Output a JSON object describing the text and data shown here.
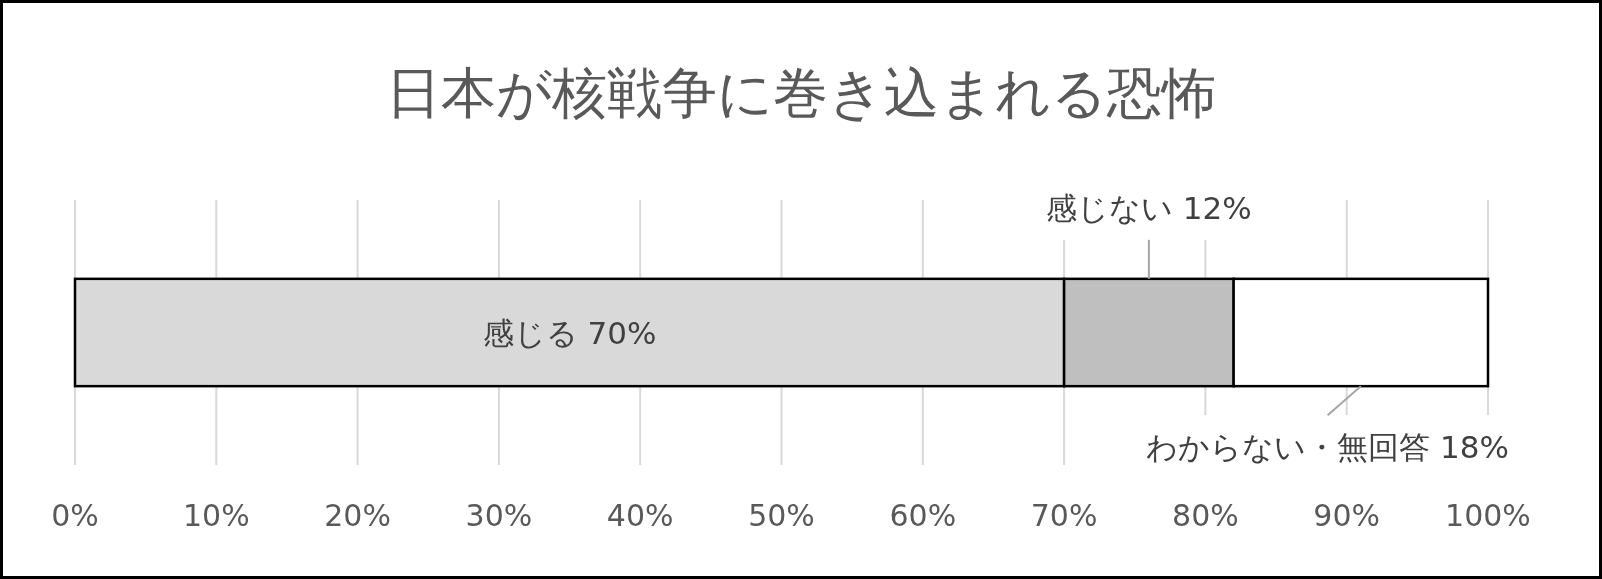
{
  "chart_data": {
    "type": "bar",
    "orientation": "horizontal",
    "stacked": true,
    "title": "日本が核戦争に巻き込まれる恐怖",
    "categories": [
      null
    ],
    "series": [
      {
        "name": "感じる",
        "color": "#d9d9d9",
        "values": [
          70
        ],
        "value_labels": [
          "70%"
        ]
      },
      {
        "name": "感じない",
        "color": "#bfbfbf",
        "values": [
          12
        ],
        "value_labels": [
          "12%"
        ]
      },
      {
        "name": "わからない・無回答",
        "color": "#ffffff",
        "values": [
          18
        ],
        "value_labels": [
          "18%"
        ]
      }
    ],
    "xlim": [
      0,
      100
    ],
    "xticks": [
      {
        "value": 0,
        "label": "0%"
      },
      {
        "value": 10,
        "label": "10%"
      },
      {
        "value": 20,
        "label": "20%"
      },
      {
        "value": 30,
        "label": "30%"
      },
      {
        "value": 40,
        "label": "40%"
      },
      {
        "value": 50,
        "label": "50%"
      },
      {
        "value": 60,
        "label": "60%"
      },
      {
        "value": 70,
        "label": "70%"
      },
      {
        "value": 80,
        "label": "80%"
      },
      {
        "value": 90,
        "label": "90%"
      },
      {
        "value": 100,
        "label": "100%"
      }
    ],
    "grid": "x"
  }
}
